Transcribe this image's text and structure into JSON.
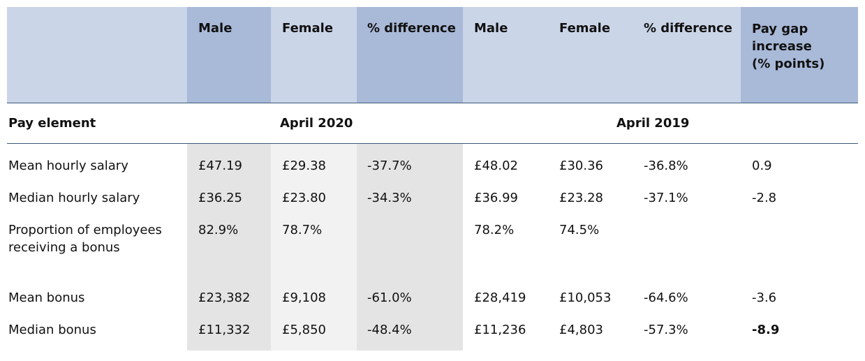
{
  "colors": {
    "header_light": "#cbd5e8",
    "header_dark": "#a9b9d8",
    "shade_dark": "#e4e4e4",
    "shade_light": "#f2f2f2",
    "rule": "#3b5a7a"
  },
  "header": {
    "male_2020": "Male",
    "female_2020": "Female",
    "diff_2020": "% difference",
    "male_2019": "Male",
    "female_2019": "Female",
    "diff_2019": "% difference",
    "gap_line1": "Pay gap",
    "gap_line2": "increase",
    "gap_line3": "(% points)"
  },
  "subheader": {
    "pay_element": "Pay element",
    "april_2020": "April 2020",
    "april_2019": "April 2019"
  },
  "rows": [
    {
      "label": "Mean hourly salary",
      "m20": "£47.19",
      "f20": "£29.38",
      "d20": "-37.7%",
      "m19": "£48.02",
      "f19": "£30.36",
      "d19": "-36.8%",
      "gap": "0.9"
    },
    {
      "label": "Median hourly salary",
      "m20": "£36.25",
      "f20": "£23.80",
      "d20": "-34.3%",
      "m19": "£36.99",
      "f19": "£23.28",
      "d19": "-37.1%",
      "gap": "-2.8"
    },
    {
      "label": "Proportion of employees",
      "label2": "receiving a bonus",
      "m20": "82.9%",
      "f20": "78.7%",
      "d20": "",
      "m19": "78.2%",
      "f19": "74.5%",
      "d19": "",
      "gap": ""
    },
    {
      "label": "Mean bonus",
      "m20": "£23,382",
      "f20": "£9,108",
      "d20": "-61.0%",
      "m19": "£28,419",
      "f19": "£10,053",
      "d19": "-64.6%",
      "gap": "-3.6"
    },
    {
      "label": "Median bonus",
      "m20": "£11,332",
      "f20": "£5,850",
      "d20": "-48.4%",
      "m19": "£11,236",
      "f19": "£4,803",
      "d19": "-57.3%",
      "gap": "-8.9"
    }
  ]
}
